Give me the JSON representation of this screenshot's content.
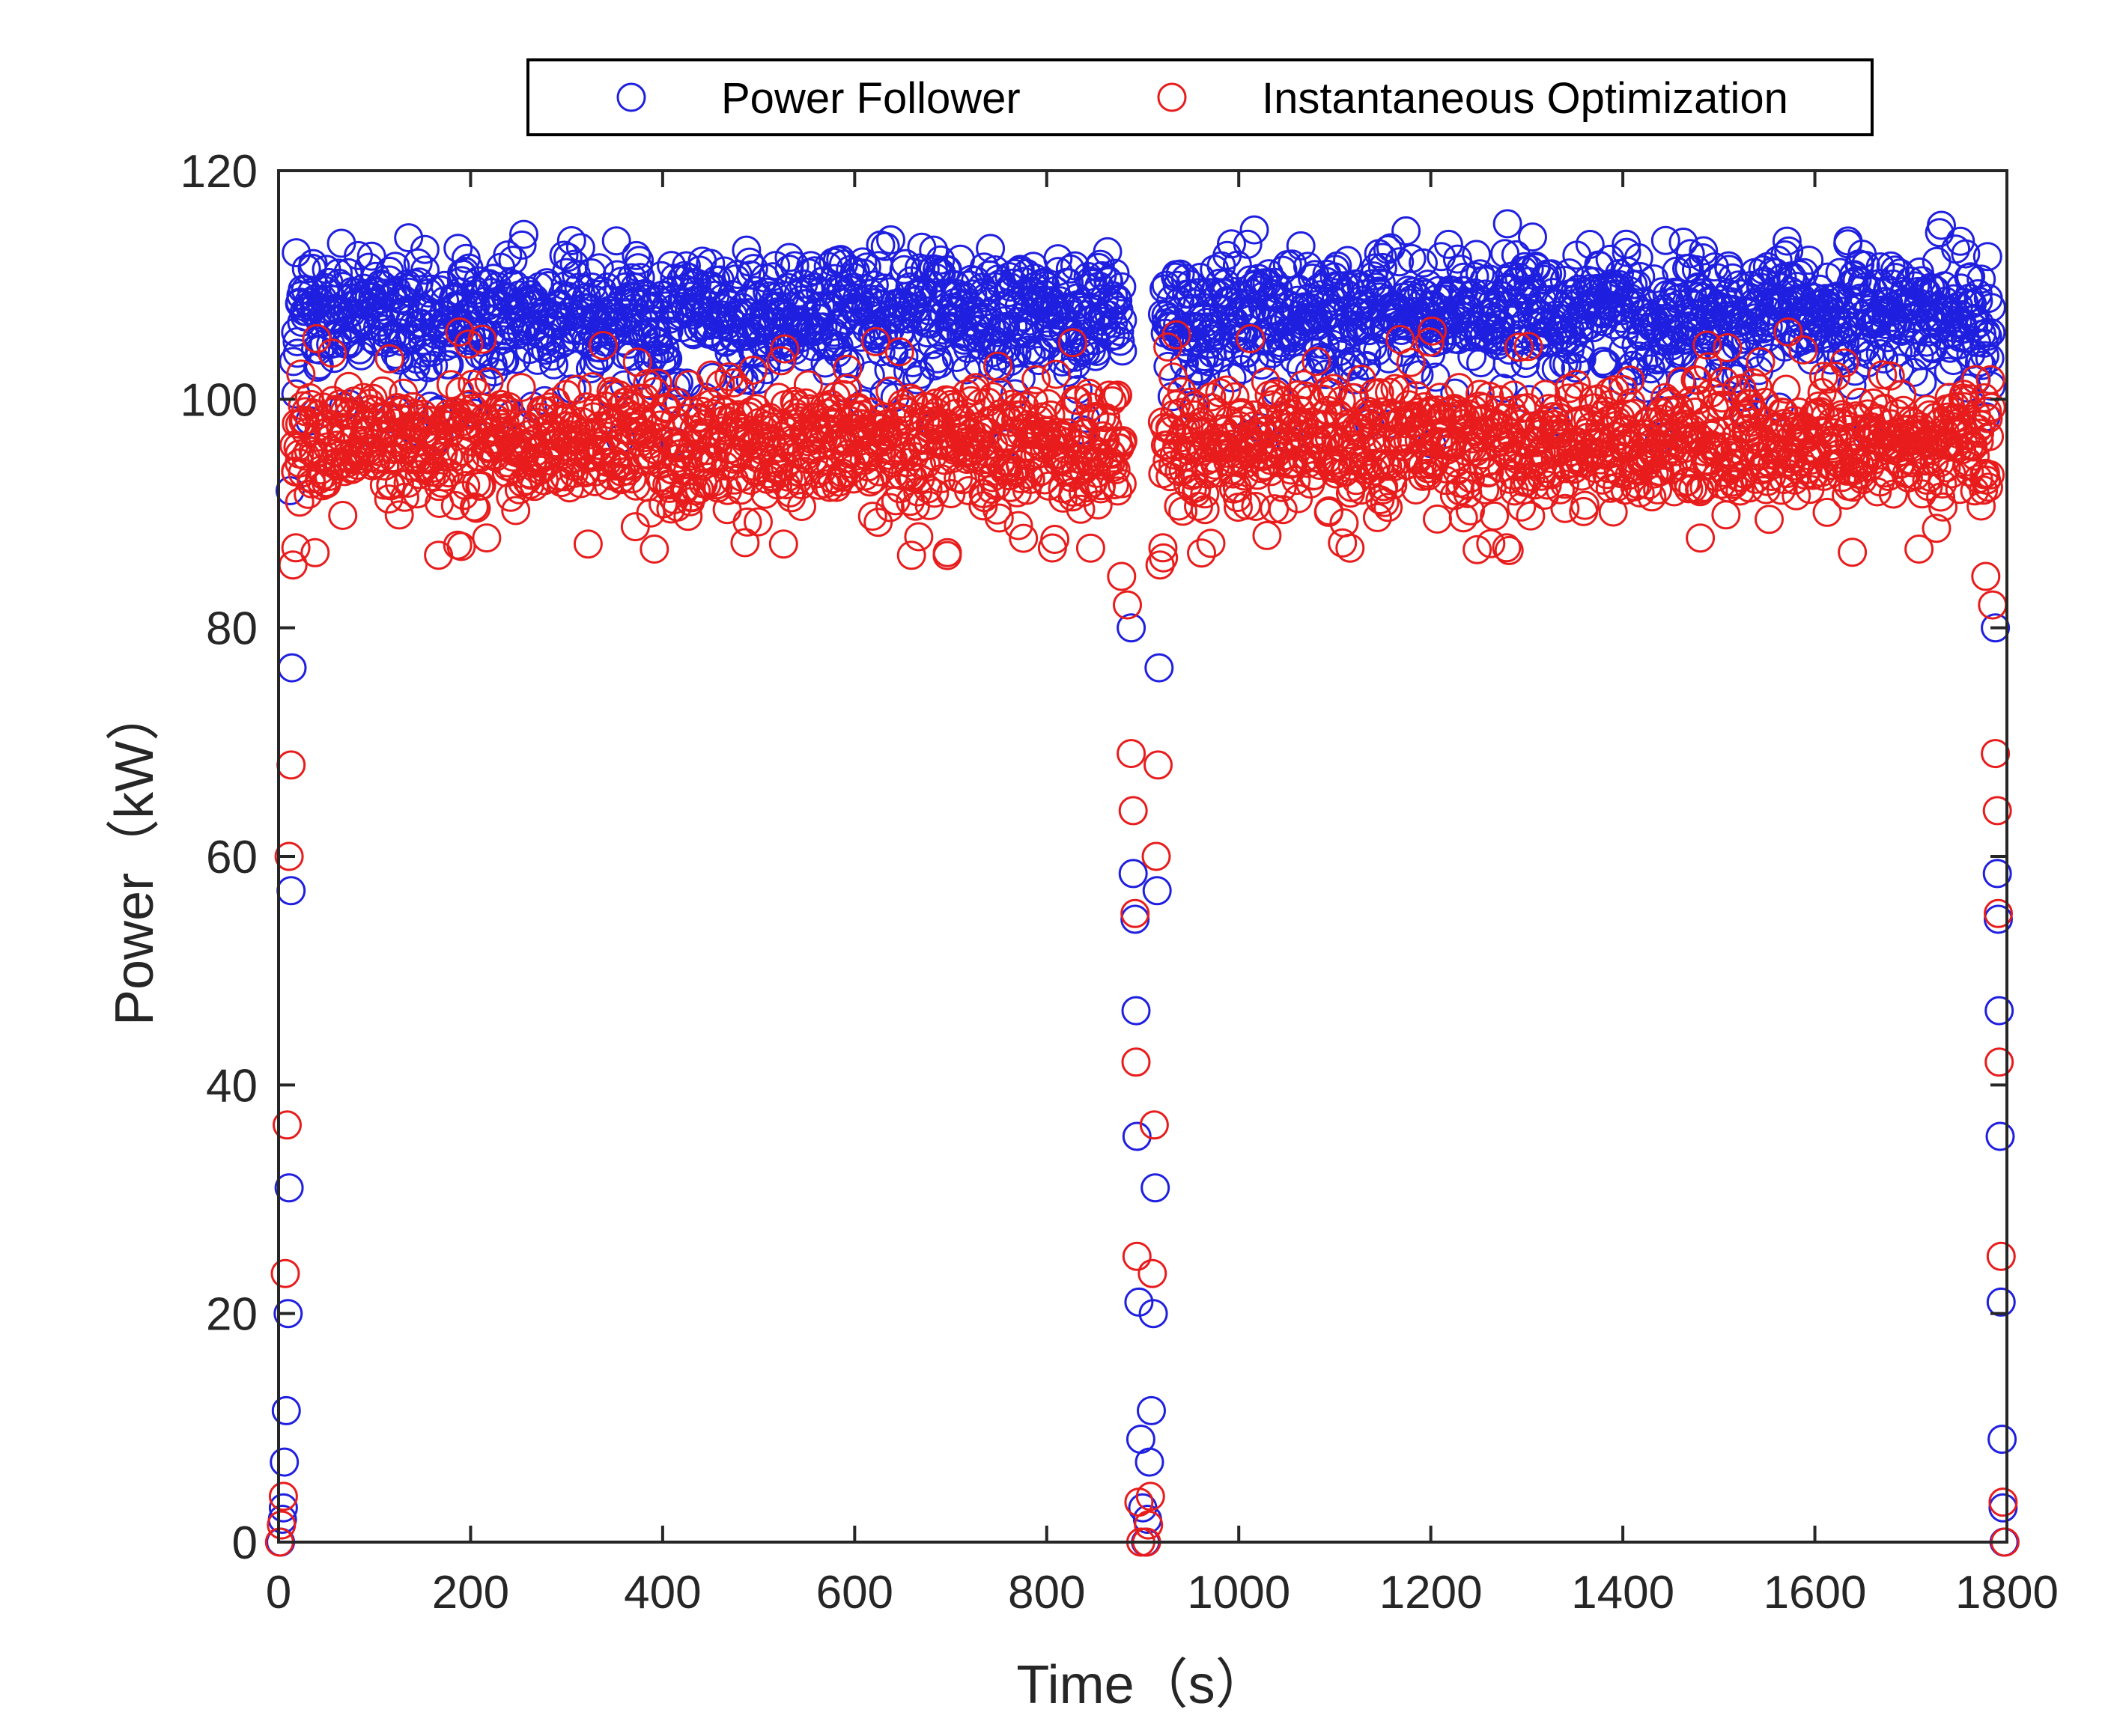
{
  "chart_data": {
    "type": "scatter",
    "xlabel": "Time（s）",
    "ylabel": "Power（kW）",
    "xlim": [
      0,
      1800
    ],
    "ylim": [
      0,
      120
    ],
    "xticks": [
      0,
      200,
      400,
      600,
      800,
      1000,
      1200,
      1400,
      1600,
      1800
    ],
    "yticks": [
      0,
      20,
      40,
      60,
      80,
      100,
      120
    ],
    "grid": false,
    "legend_position": "top, outside plot, horizontal",
    "marker": "open-circle",
    "series": [
      {
        "name": "Power Follower",
        "color": "#1f1fe0",
        "description_band": [
          100,
          115
        ],
        "transition_points": [
          {
            "x": 2,
            "y": 0
          },
          {
            "x": 4,
            "y": 2
          },
          {
            "x": 5,
            "y": 3
          },
          {
            "x": 6,
            "y": 7
          },
          {
            "x": 8,
            "y": 11.5
          },
          {
            "x": 10,
            "y": 20
          },
          {
            "x": 11,
            "y": 31
          },
          {
            "x": 13,
            "y": 57
          },
          {
            "x": 14,
            "y": 76.5
          },
          {
            "x": 12,
            "y": 92
          },
          {
            "x": 888,
            "y": 80
          },
          {
            "x": 890,
            "y": 58.5
          },
          {
            "x": 892,
            "y": 54.5
          },
          {
            "x": 893,
            "y": 46.5
          },
          {
            "x": 894,
            "y": 35.5
          },
          {
            "x": 896,
            "y": 21
          },
          {
            "x": 898,
            "y": 9
          },
          {
            "x": 900,
            "y": 3
          },
          {
            "x": 903,
            "y": 0
          },
          {
            "x": 905,
            "y": 2
          },
          {
            "x": 907,
            "y": 7
          },
          {
            "x": 909,
            "y": 11.5
          },
          {
            "x": 911,
            "y": 20
          },
          {
            "x": 913,
            "y": 31
          },
          {
            "x": 915,
            "y": 57
          },
          {
            "x": 917,
            "y": 76.5
          },
          {
            "x": 1788,
            "y": 80
          },
          {
            "x": 1790,
            "y": 58.5
          },
          {
            "x": 1791,
            "y": 54.5
          },
          {
            "x": 1792,
            "y": 46.5
          },
          {
            "x": 1793,
            "y": 35.5
          },
          {
            "x": 1794,
            "y": 21
          },
          {
            "x": 1795,
            "y": 9
          },
          {
            "x": 1796,
            "y": 3
          },
          {
            "x": 1797,
            "y": 0
          }
        ]
      },
      {
        "name": "Instantaneous Optimization",
        "color": "#e81c1c",
        "description_band": [
          86,
          106
        ],
        "transition_points": [
          {
            "x": 1,
            "y": 0
          },
          {
            "x": 3,
            "y": 1.5
          },
          {
            "x": 5,
            "y": 4
          },
          {
            "x": 7,
            "y": 23.5
          },
          {
            "x": 9,
            "y": 36.5
          },
          {
            "x": 11,
            "y": 60
          },
          {
            "x": 13,
            "y": 68
          },
          {
            "x": 15,
            "y": 85.5
          },
          {
            "x": 18,
            "y": 87
          },
          {
            "x": 22,
            "y": 91
          },
          {
            "x": 878,
            "y": 84.5
          },
          {
            "x": 884,
            "y": 82
          },
          {
            "x": 888,
            "y": 69
          },
          {
            "x": 890,
            "y": 64
          },
          {
            "x": 892,
            "y": 55
          },
          {
            "x": 893,
            "y": 42
          },
          {
            "x": 894,
            "y": 25
          },
          {
            "x": 896,
            "y": 3.5
          },
          {
            "x": 898,
            "y": 0
          },
          {
            "x": 904,
            "y": 0
          },
          {
            "x": 906,
            "y": 1.5
          },
          {
            "x": 908,
            "y": 4
          },
          {
            "x": 910,
            "y": 23.5
          },
          {
            "x": 912,
            "y": 36.5
          },
          {
            "x": 914,
            "y": 60
          },
          {
            "x": 916,
            "y": 68
          },
          {
            "x": 918,
            "y": 85.5
          },
          {
            "x": 921,
            "y": 87
          },
          {
            "x": 1778,
            "y": 84.5
          },
          {
            "x": 1785,
            "y": 82
          },
          {
            "x": 1788,
            "y": 69
          },
          {
            "x": 1790,
            "y": 64
          },
          {
            "x": 1791,
            "y": 55
          },
          {
            "x": 1792,
            "y": 42
          },
          {
            "x": 1794,
            "y": 25
          },
          {
            "x": 1796,
            "y": 3.5
          },
          {
            "x": 1798,
            "y": 0
          }
        ]
      }
    ]
  }
}
